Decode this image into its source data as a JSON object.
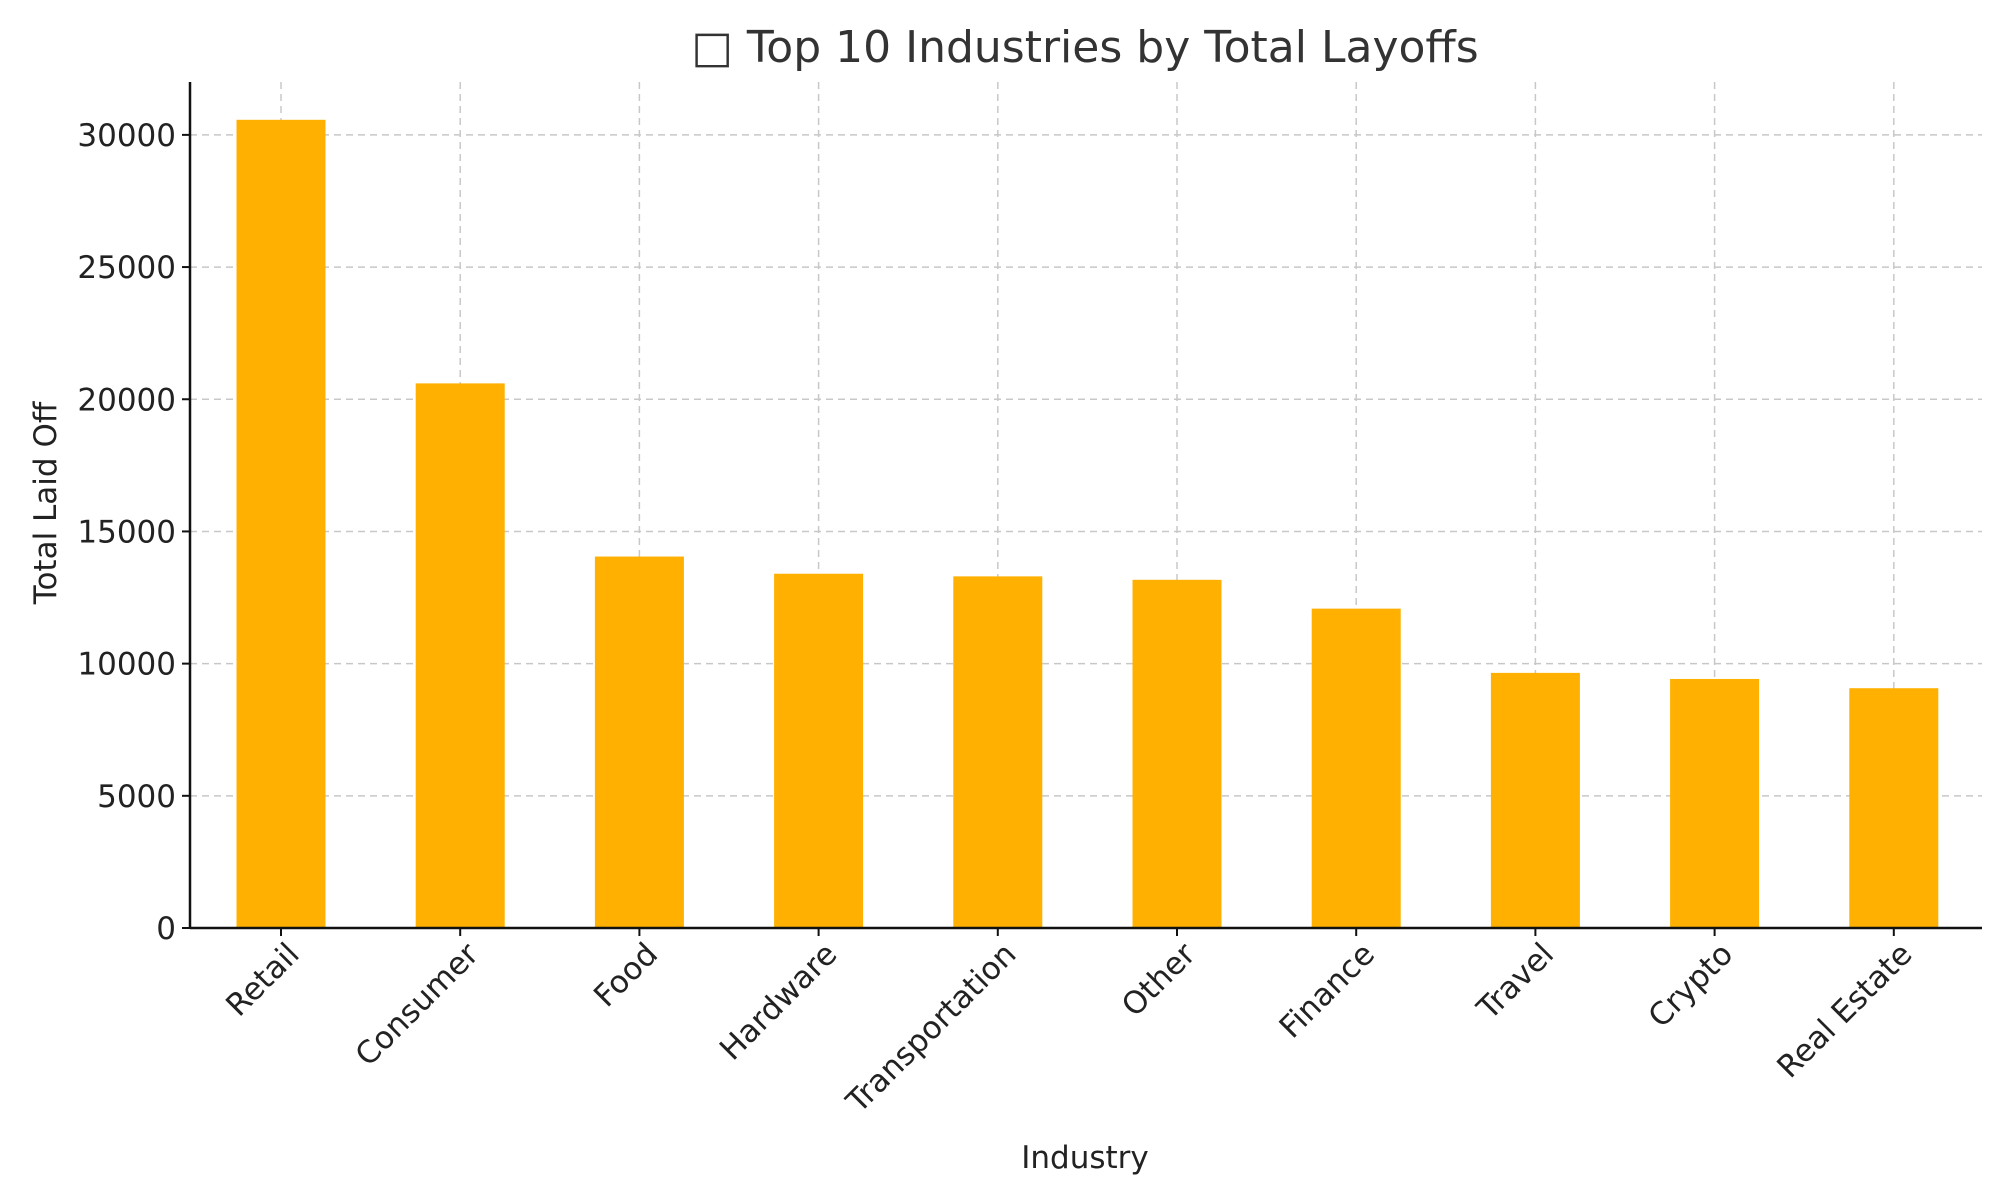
{
  "chart_data": {
    "type": "bar",
    "title": "□ Top 10 Industries by Total Layoffs",
    "xlabel": "Industry",
    "ylabel": "Total Laid Off",
    "categories": [
      "Retail",
      "Consumer",
      "Food",
      "Hardware",
      "Transportation",
      "Other",
      "Finance",
      "Travel",
      "Crypto",
      "Real Estate"
    ],
    "values": [
      30570,
      20600,
      14050,
      13400,
      13300,
      13170,
      12080,
      9650,
      9420,
      9070
    ],
    "ylim": [
      0,
      32000
    ],
    "yticks": [
      0,
      5000,
      10000,
      15000,
      20000,
      25000,
      30000
    ],
    "grid": true,
    "bar_color": "#ffb000"
  }
}
